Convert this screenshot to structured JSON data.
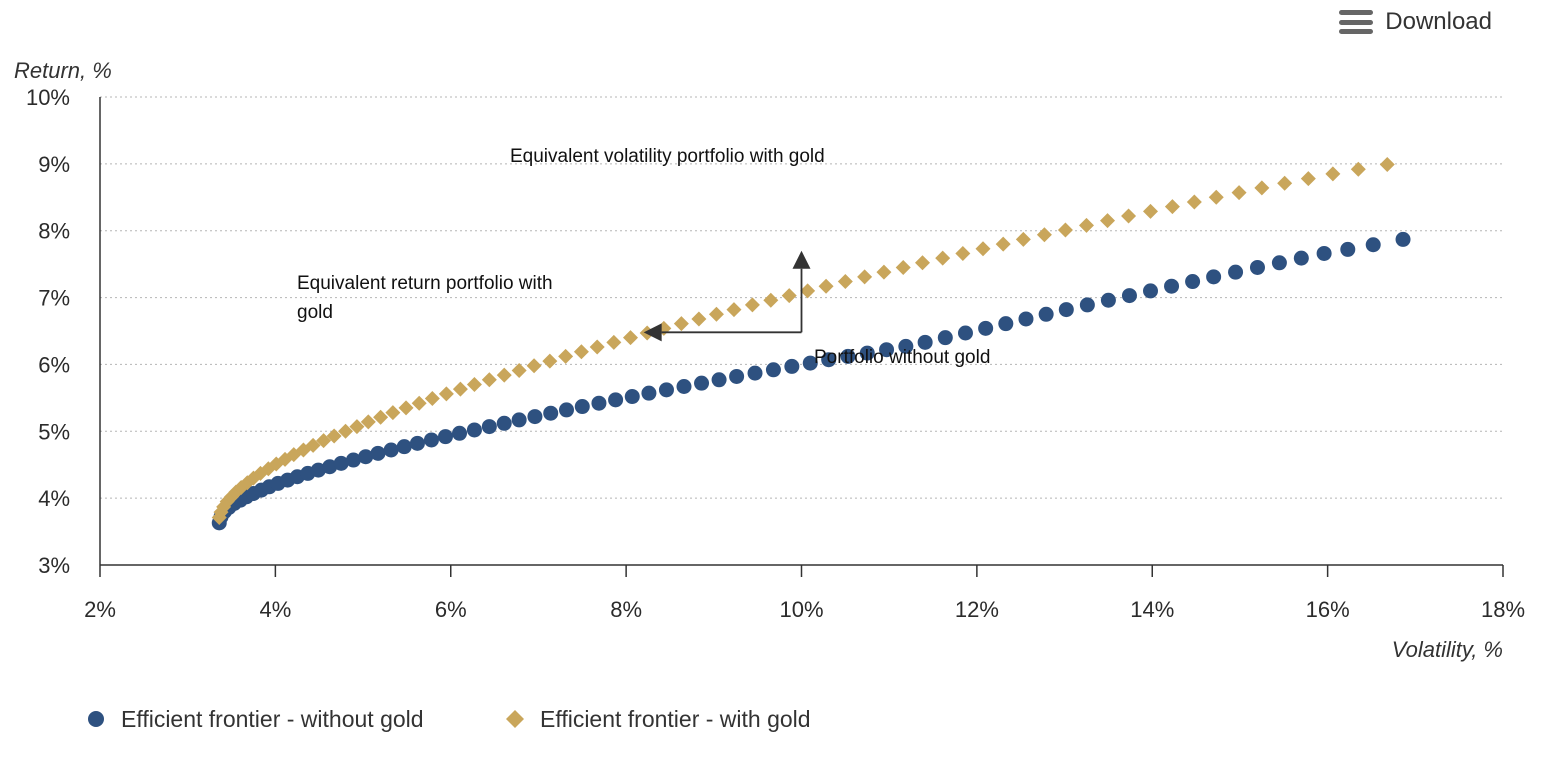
{
  "download": {
    "label": "Download",
    "icon": "hamburger-menu-icon"
  },
  "chart_data": {
    "type": "scatter",
    "title": "",
    "xlabel": "Volatility, %",
    "ylabel": "Return, %",
    "xlim": [
      2,
      18
    ],
    "ylim": [
      3,
      10
    ],
    "x_ticks": [
      "2%",
      "4%",
      "6%",
      "8%",
      "10%",
      "12%",
      "14%",
      "16%",
      "18%"
    ],
    "y_ticks": [
      "3%",
      "4%",
      "5%",
      "6%",
      "7%",
      "8%",
      "9%",
      "10%"
    ],
    "grid": true,
    "legend_position": "bottom-left",
    "series": [
      {
        "name": "Efficient frontier - without gold",
        "color": "#2e5180",
        "marker": "circle",
        "x": [
          3.36,
          3.38,
          3.42,
          3.47,
          3.53,
          3.6,
          3.67,
          3.75,
          3.84,
          3.93,
          4.03,
          4.14,
          4.25,
          4.37,
          4.49,
          4.62,
          4.75,
          4.89,
          5.03,
          5.17,
          5.32,
          5.47,
          5.62,
          5.78,
          5.94,
          6.1,
          6.27,
          6.44,
          6.61,
          6.78,
          6.96,
          7.14,
          7.32,
          7.5,
          7.69,
          7.88,
          8.07,
          8.26,
          8.46,
          8.66,
          8.86,
          9.06,
          9.26,
          9.47,
          9.68,
          9.89,
          10.1,
          10.31,
          10.53,
          10.75,
          10.97,
          11.19,
          11.41,
          11.64,
          11.87,
          12.1,
          12.33,
          12.56,
          12.79,
          13.02,
          13.26,
          13.5,
          13.74,
          13.98,
          14.22,
          14.46,
          14.7,
          14.95,
          15.2,
          15.45,
          15.7,
          15.96,
          16.23,
          16.52,
          16.86
        ],
        "y": [
          3.63,
          3.72,
          3.8,
          3.86,
          3.92,
          3.97,
          4.02,
          4.07,
          4.12,
          4.17,
          4.22,
          4.27,
          4.32,
          4.37,
          4.42,
          4.47,
          4.52,
          4.57,
          4.62,
          4.67,
          4.72,
          4.77,
          4.82,
          4.87,
          4.92,
          4.97,
          5.02,
          5.07,
          5.12,
          5.17,
          5.22,
          5.27,
          5.32,
          5.37,
          5.42,
          5.47,
          5.52,
          5.57,
          5.62,
          5.67,
          5.72,
          5.77,
          5.82,
          5.87,
          5.92,
          5.97,
          6.02,
          6.07,
          6.12,
          6.17,
          6.22,
          6.27,
          6.33,
          6.4,
          6.47,
          6.54,
          6.61,
          6.68,
          6.75,
          6.82,
          6.89,
          6.96,
          7.03,
          7.1,
          7.17,
          7.24,
          7.31,
          7.38,
          7.45,
          7.52,
          7.59,
          7.66,
          7.72,
          7.79,
          7.87
        ]
      },
      {
        "name": "Efficient frontier - with gold",
        "color": "#c9a65b",
        "marker": "diamond",
        "x": [
          3.36,
          3.38,
          3.41,
          3.45,
          3.5,
          3.55,
          3.61,
          3.68,
          3.75,
          3.83,
          3.92,
          4.01,
          4.11,
          4.21,
          4.32,
          4.43,
          4.55,
          4.67,
          4.8,
          4.93,
          5.06,
          5.2,
          5.34,
          5.49,
          5.64,
          5.79,
          5.95,
          6.11,
          6.27,
          6.44,
          6.61,
          6.78,
          6.95,
          7.13,
          7.31,
          7.49,
          7.67,
          7.86,
          8.05,
          8.24,
          8.43,
          8.63,
          8.83,
          9.03,
          9.23,
          9.44,
          9.65,
          9.86,
          10.07,
          10.28,
          10.5,
          10.72,
          10.94,
          11.16,
          11.38,
          11.61,
          11.84,
          12.07,
          12.3,
          12.53,
          12.77,
          13.01,
          13.25,
          13.49,
          13.73,
          13.98,
          14.23,
          14.48,
          14.73,
          14.99,
          15.25,
          15.51,
          15.78,
          16.06,
          16.35,
          16.68
        ],
        "y": [
          3.71,
          3.79,
          3.87,
          3.95,
          4.02,
          4.09,
          4.16,
          4.23,
          4.3,
          4.37,
          4.44,
          4.51,
          4.58,
          4.65,
          4.72,
          4.79,
          4.86,
          4.93,
          5.0,
          5.07,
          5.14,
          5.21,
          5.28,
          5.35,
          5.42,
          5.49,
          5.56,
          5.63,
          5.7,
          5.77,
          5.84,
          5.91,
          5.98,
          6.05,
          6.12,
          6.19,
          6.26,
          6.33,
          6.4,
          6.47,
          6.54,
          6.61,
          6.68,
          6.75,
          6.82,
          6.89,
          6.96,
          7.03,
          7.1,
          7.17,
          7.24,
          7.31,
          7.38,
          7.45,
          7.52,
          7.59,
          7.66,
          7.73,
          7.8,
          7.87,
          7.94,
          8.01,
          8.08,
          8.15,
          8.22,
          8.29,
          8.36,
          8.43,
          8.5,
          8.57,
          8.64,
          8.71,
          8.78,
          8.85,
          8.92,
          8.99
        ]
      }
    ],
    "annotations": [
      {
        "text": "Equivalent volatility portfolio with gold"
      },
      {
        "text": "Equivalent return portfolio with gold"
      },
      {
        "text": "Portfolio without gold"
      }
    ],
    "arrows": [
      {
        "from": [
          10.0,
          6.48
        ],
        "to": [
          10.0,
          7.7
        ]
      },
      {
        "from": [
          10.0,
          6.48
        ],
        "to": [
          8.2,
          6.48
        ]
      }
    ]
  }
}
